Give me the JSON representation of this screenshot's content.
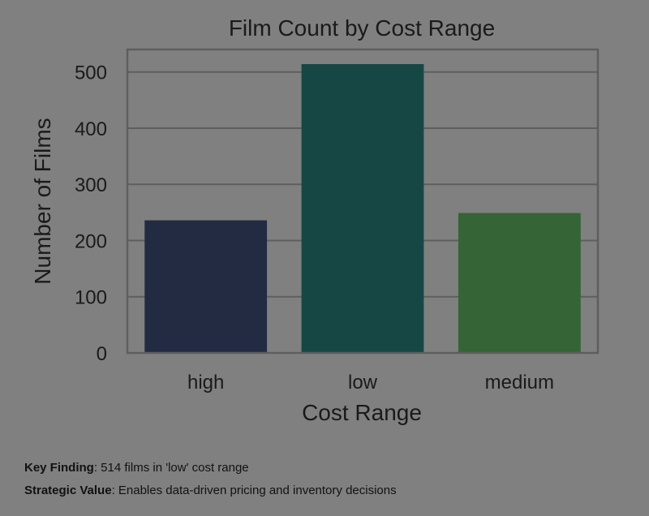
{
  "chart_data": {
    "type": "bar",
    "title": "Film Count by Cost Range",
    "xlabel": "Cost Range",
    "ylabel": "Number of Films",
    "categories": [
      "high",
      "low",
      "medium"
    ],
    "values": [
      236,
      514,
      249
    ],
    "colors": [
      "#222b42",
      "#174744",
      "#356436"
    ],
    "ylim": [
      0,
      540
    ],
    "yticks": [
      0,
      100,
      200,
      300,
      400,
      500
    ],
    "grid": true
  },
  "notes": [
    {
      "label": "Key Finding",
      "text": ": 514 films in 'low' cost range"
    },
    {
      "label": "Strategic Value",
      "text": ": Enables data-driven pricing and inventory decisions"
    }
  ]
}
